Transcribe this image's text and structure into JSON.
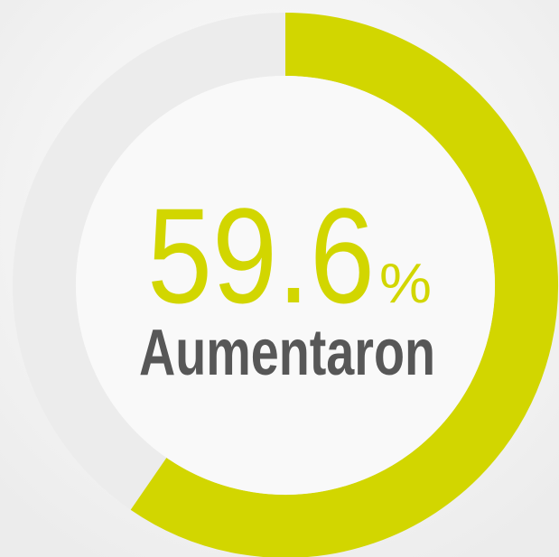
{
  "chart_data": {
    "type": "donut",
    "values": [
      59.6
    ],
    "unit": "%",
    "label": "Aumentaron",
    "color": "#d2d600",
    "track_color": "#ececec"
  }
}
